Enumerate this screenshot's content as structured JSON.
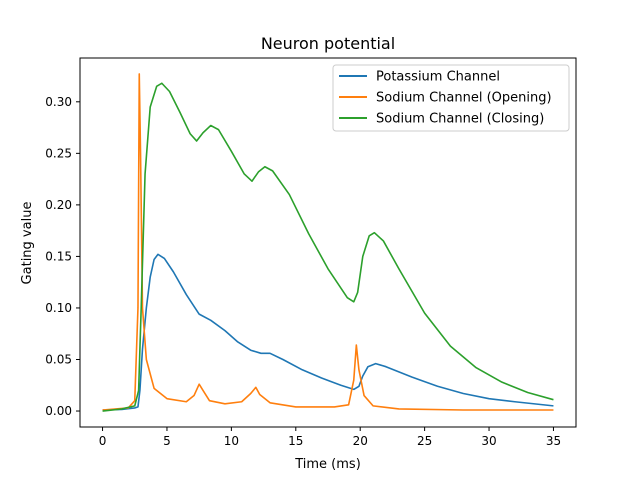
{
  "chart_data": {
    "type": "line",
    "title": "Neuron potential",
    "xlabel": "Time (ms)",
    "ylabel": "Gating value",
    "xlim": [
      -1.75,
      36.75
    ],
    "ylim": [
      -0.0155,
      0.3425
    ],
    "xticks": [
      0,
      5,
      10,
      15,
      20,
      25,
      30,
      35
    ],
    "xtick_labels": [
      "0",
      "5",
      "10",
      "15",
      "20",
      "25",
      "30",
      "35"
    ],
    "yticks": [
      0.0,
      0.05,
      0.1,
      0.15,
      0.2,
      0.25,
      0.3
    ],
    "ytick_labels": [
      "0.00",
      "0.05",
      "0.10",
      "0.15",
      "0.20",
      "0.25",
      "0.30"
    ],
    "grid": false,
    "legend_position": "top-right",
    "series": [
      {
        "name": "Potassium Channel",
        "color": "#1f77b4",
        "points": [
          [
            0,
            0.001
          ],
          [
            1.5,
            0.0015
          ],
          [
            2.5,
            0.003
          ],
          [
            2.75,
            0.004
          ],
          [
            2.9,
            0.02
          ],
          [
            3.1,
            0.06
          ],
          [
            3.4,
            0.1
          ],
          [
            3.7,
            0.13
          ],
          [
            4.0,
            0.147
          ],
          [
            4.3,
            0.152
          ],
          [
            4.8,
            0.148
          ],
          [
            5.5,
            0.135
          ],
          [
            6.5,
            0.113
          ],
          [
            7.5,
            0.094
          ],
          [
            8.4,
            0.088
          ],
          [
            9.5,
            0.078
          ],
          [
            10.5,
            0.067
          ],
          [
            11.5,
            0.059
          ],
          [
            12.3,
            0.056
          ],
          [
            13.0,
            0.056
          ],
          [
            14.0,
            0.05
          ],
          [
            15.5,
            0.04
          ],
          [
            17.0,
            0.032
          ],
          [
            18.5,
            0.025
          ],
          [
            19.5,
            0.021
          ],
          [
            19.9,
            0.024
          ],
          [
            20.2,
            0.034
          ],
          [
            20.6,
            0.043
          ],
          [
            21.2,
            0.046
          ],
          [
            22.0,
            0.043
          ],
          [
            24.0,
            0.033
          ],
          [
            26.0,
            0.024
          ],
          [
            28.0,
            0.017
          ],
          [
            30.0,
            0.012
          ],
          [
            32.0,
            0.009
          ],
          [
            35.0,
            0.005
          ]
        ]
      },
      {
        "name": "Sodium Channel (Opening)",
        "color": "#ff7f0e",
        "points": [
          [
            0,
            0.001
          ],
          [
            2.0,
            0.003
          ],
          [
            2.5,
            0.01
          ],
          [
            2.75,
            0.1
          ],
          [
            2.85,
            0.327
          ],
          [
            2.95,
            0.25
          ],
          [
            3.1,
            0.1
          ],
          [
            3.4,
            0.05
          ],
          [
            4.0,
            0.022
          ],
          [
            5.0,
            0.012
          ],
          [
            6.5,
            0.009
          ],
          [
            7.1,
            0.015
          ],
          [
            7.5,
            0.026
          ],
          [
            7.8,
            0.02
          ],
          [
            8.3,
            0.01
          ],
          [
            9.5,
            0.007
          ],
          [
            10.8,
            0.009
          ],
          [
            11.5,
            0.017
          ],
          [
            11.9,
            0.023
          ],
          [
            12.2,
            0.016
          ],
          [
            13.0,
            0.008
          ],
          [
            15.0,
            0.004
          ],
          [
            18.0,
            0.004
          ],
          [
            19.1,
            0.006
          ],
          [
            19.5,
            0.03
          ],
          [
            19.7,
            0.064
          ],
          [
            19.9,
            0.04
          ],
          [
            20.3,
            0.015
          ],
          [
            21.0,
            0.005
          ],
          [
            23.0,
            0.002
          ],
          [
            28.0,
            0.001
          ],
          [
            35.0,
            0.001
          ]
        ]
      },
      {
        "name": "Sodium Channel (Closing)",
        "color": "#2ca02c",
        "points": [
          [
            0,
            0.0
          ],
          [
            1.5,
            0.002
          ],
          [
            2.5,
            0.005
          ],
          [
            2.8,
            0.02
          ],
          [
            3.0,
            0.1
          ],
          [
            3.3,
            0.23
          ],
          [
            3.7,
            0.295
          ],
          [
            4.2,
            0.315
          ],
          [
            4.6,
            0.318
          ],
          [
            5.2,
            0.31
          ],
          [
            6.0,
            0.29
          ],
          [
            6.8,
            0.269
          ],
          [
            7.3,
            0.262
          ],
          [
            7.8,
            0.27
          ],
          [
            8.4,
            0.277
          ],
          [
            9.0,
            0.273
          ],
          [
            10.0,
            0.252
          ],
          [
            11.0,
            0.23
          ],
          [
            11.6,
            0.223
          ],
          [
            12.1,
            0.232
          ],
          [
            12.6,
            0.237
          ],
          [
            13.2,
            0.233
          ],
          [
            14.5,
            0.21
          ],
          [
            16.0,
            0.172
          ],
          [
            17.5,
            0.138
          ],
          [
            19.0,
            0.11
          ],
          [
            19.5,
            0.106
          ],
          [
            19.8,
            0.115
          ],
          [
            20.2,
            0.15
          ],
          [
            20.7,
            0.17
          ],
          [
            21.1,
            0.173
          ],
          [
            21.8,
            0.165
          ],
          [
            23.0,
            0.138
          ],
          [
            25.0,
            0.095
          ],
          [
            27.0,
            0.063
          ],
          [
            29.0,
            0.042
          ],
          [
            31.0,
            0.028
          ],
          [
            33.0,
            0.018
          ],
          [
            35.0,
            0.011
          ]
        ]
      }
    ]
  }
}
